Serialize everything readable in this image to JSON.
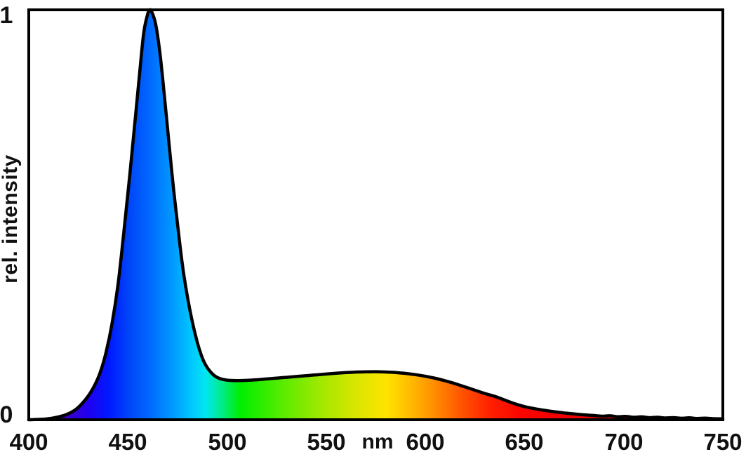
{
  "figure": {
    "background": "#ffffff",
    "plot_border_color": "#000000",
    "y_axis": {
      "label": "rel. intensity",
      "tick_top": "1",
      "tick_bottom": "0"
    },
    "x_axis": {
      "unit_label": "nm"
    }
  },
  "chart_data": {
    "type": "area",
    "xlabel": "nm",
    "ylabel": "rel. intensity",
    "xlim": [
      400,
      750
    ],
    "ylim": [
      0,
      1
    ],
    "x_ticks": [
      400,
      450,
      500,
      550,
      600,
      650,
      700,
      750
    ],
    "y_ticks": [
      0,
      1
    ],
    "grid": false,
    "legend": "none",
    "peak": {
      "wavelength_nm": 461,
      "intensity": 1.0
    },
    "secondary_hump": {
      "wavelength_nm": 575,
      "intensity": 0.117
    },
    "dip": {
      "wavelength_nm": 503,
      "intensity": 0.096
    },
    "line_color": "#000000",
    "line_width": 4.5,
    "fill": "spectral-gradient",
    "points": [
      [
        400,
        0.0
      ],
      [
        403,
        0.0005
      ],
      [
        406,
        0.001
      ],
      [
        409,
        0.002
      ],
      [
        412,
        0.004
      ],
      [
        415,
        0.007
      ],
      [
        418,
        0.011
      ],
      [
        421,
        0.017
      ],
      [
        424,
        0.026
      ],
      [
        427,
        0.04
      ],
      [
        430,
        0.058
      ],
      [
        433,
        0.082
      ],
      [
        436,
        0.115
      ],
      [
        439,
        0.165
      ],
      [
        442,
        0.235
      ],
      [
        445,
        0.33
      ],
      [
        448,
        0.46
      ],
      [
        451,
        0.6
      ],
      [
        454,
        0.75
      ],
      [
        456,
        0.85
      ],
      [
        458,
        0.945
      ],
      [
        460,
        0.99
      ],
      [
        461,
        1.0
      ],
      [
        462,
        0.995
      ],
      [
        464,
        0.965
      ],
      [
        466,
        0.9
      ],
      [
        468,
        0.81
      ],
      [
        470,
        0.71
      ],
      [
        472,
        0.61
      ],
      [
        474,
        0.52
      ],
      [
        476,
        0.435
      ],
      [
        478,
        0.36
      ],
      [
        480,
        0.3
      ],
      [
        482,
        0.25
      ],
      [
        484,
        0.207
      ],
      [
        486,
        0.172
      ],
      [
        488,
        0.145
      ],
      [
        490,
        0.127
      ],
      [
        493,
        0.11
      ],
      [
        496,
        0.101
      ],
      [
        500,
        0.0965
      ],
      [
        505,
        0.0955
      ],
      [
        510,
        0.096
      ],
      [
        515,
        0.0975
      ],
      [
        520,
        0.0995
      ],
      [
        525,
        0.1015
      ],
      [
        530,
        0.1035
      ],
      [
        535,
        0.1055
      ],
      [
        540,
        0.1075
      ],
      [
        545,
        0.1095
      ],
      [
        550,
        0.1115
      ],
      [
        555,
        0.1135
      ],
      [
        560,
        0.115
      ],
      [
        565,
        0.1162
      ],
      [
        570,
        0.117
      ],
      [
        575,
        0.1172
      ],
      [
        580,
        0.1165
      ],
      [
        585,
        0.1152
      ],
      [
        590,
        0.113
      ],
      [
        595,
        0.11
      ],
      [
        600,
        0.106
      ],
      [
        605,
        0.101
      ],
      [
        610,
        0.095
      ],
      [
        615,
        0.088
      ],
      [
        620,
        0.08
      ],
      [
        625,
        0.072
      ],
      [
        630,
        0.064
      ],
      [
        635,
        0.057
      ],
      [
        640,
        0.048
      ],
      [
        645,
        0.039
      ],
      [
        650,
        0.032
      ],
      [
        655,
        0.027
      ],
      [
        660,
        0.023
      ],
      [
        665,
        0.0195
      ],
      [
        670,
        0.0165
      ],
      [
        675,
        0.014
      ],
      [
        680,
        0.012
      ],
      [
        685,
        0.0102
      ],
      [
        689,
        0.0086
      ],
      [
        693,
        0.0096
      ],
      [
        697,
        0.0072
      ],
      [
        701,
        0.0082
      ],
      [
        705,
        0.006
      ],
      [
        709,
        0.007
      ],
      [
        713,
        0.005
      ],
      [
        717,
        0.006
      ],
      [
        721,
        0.0042
      ],
      [
        725,
        0.0052
      ],
      [
        729,
        0.0036
      ],
      [
        733,
        0.0046
      ],
      [
        737,
        0.003
      ],
      [
        741,
        0.004
      ],
      [
        745,
        0.0026
      ],
      [
        750,
        0.0022
      ]
    ],
    "gradient_stops": [
      {
        "offset": 0.0,
        "color": "#0a0020"
      },
      {
        "offset": 0.03,
        "color": "#26006e"
      },
      {
        "offset": 0.055,
        "color": "#3b00c8"
      },
      {
        "offset": 0.085,
        "color": "#2000f0"
      },
      {
        "offset": 0.115,
        "color": "#0018ff"
      },
      {
        "offset": 0.145,
        "color": "#0046f8"
      },
      {
        "offset": 0.175,
        "color": "#006aff"
      },
      {
        "offset": 0.205,
        "color": "#0096ff"
      },
      {
        "offset": 0.235,
        "color": "#00c8ff"
      },
      {
        "offset": 0.255,
        "color": "#00e6f0"
      },
      {
        "offset": 0.28,
        "color": "#00ec80"
      },
      {
        "offset": 0.305,
        "color": "#00ee00"
      },
      {
        "offset": 0.36,
        "color": "#52ec00"
      },
      {
        "offset": 0.42,
        "color": "#a0e800"
      },
      {
        "offset": 0.47,
        "color": "#d8e600"
      },
      {
        "offset": 0.515,
        "color": "#ffe400"
      },
      {
        "offset": 0.545,
        "color": "#ffc000"
      },
      {
        "offset": 0.58,
        "color": "#ff9400"
      },
      {
        "offset": 0.625,
        "color": "#ff5200"
      },
      {
        "offset": 0.665,
        "color": "#ff2000"
      },
      {
        "offset": 0.71,
        "color": "#fa0400"
      },
      {
        "offset": 0.78,
        "color": "#f00000"
      },
      {
        "offset": 0.86,
        "color": "#d00000"
      },
      {
        "offset": 1.0,
        "color": "#900000"
      }
    ]
  }
}
